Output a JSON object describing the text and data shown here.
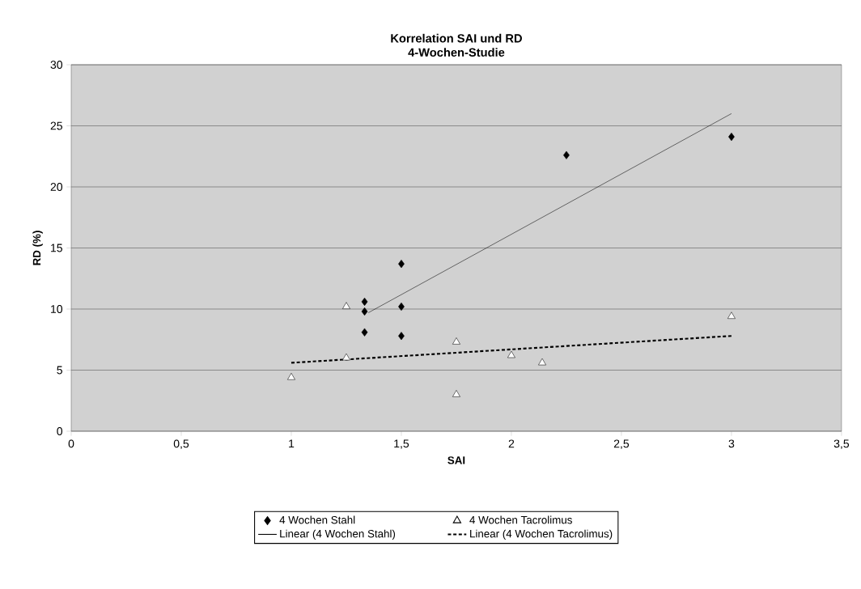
{
  "chart_data": {
    "type": "scatter",
    "title": "Korrelation SAI und RD",
    "subtitle": "4-Wochen-Studie",
    "xlabel": "SAI",
    "ylabel": "RD (%)",
    "xlim": [
      0,
      3.5
    ],
    "ylim": [
      0,
      30
    ],
    "xticks": [
      0,
      {
        "value": 0.5,
        "label": "0,5"
      },
      1,
      {
        "value": 1.5,
        "label": "1,5"
      },
      2,
      {
        "value": 2.5,
        "label": "2,5"
      },
      3,
      {
        "value": 3.5,
        "label": "3,5"
      }
    ],
    "yticks": [
      0,
      5,
      10,
      15,
      20,
      25,
      30
    ],
    "grid": "y",
    "legend": "bottom",
    "series": [
      {
        "name": "4 Wochen Stahl",
        "marker": "diamond",
        "color": "#000000",
        "x": [
          1.333,
          1.333,
          1.333,
          1.5,
          1.5,
          1.5,
          2.25,
          3
        ],
        "values": [
          10.6,
          9.8,
          8.1,
          13.7,
          10.2,
          7.8,
          22.6,
          24.1
        ]
      },
      {
        "name": "4 Wochen Tacrolimus",
        "marker": "triangle",
        "color": "#ffffff",
        "x": [
          1,
          1.25,
          1.25,
          1.75,
          1.75,
          2,
          2.14,
          3
        ],
        "values": [
          4.4,
          10.2,
          6.0,
          7.3,
          3.0,
          6.2,
          5.6,
          9.4
        ]
      },
      {
        "name": "Linear (4 Wochen Stahl)",
        "type": "line",
        "marker": "none",
        "line_style": "solid",
        "color": "#000000",
        "x": [
          1.35,
          3
        ],
        "values": [
          9.7,
          26.0
        ]
      },
      {
        "name": "Linear (4 Wochen Tacrolimus)",
        "type": "line",
        "marker": "none",
        "line_style": "dashed",
        "color": "#000000",
        "x": [
          1,
          3
        ],
        "values": [
          5.6,
          7.8
        ]
      }
    ]
  }
}
